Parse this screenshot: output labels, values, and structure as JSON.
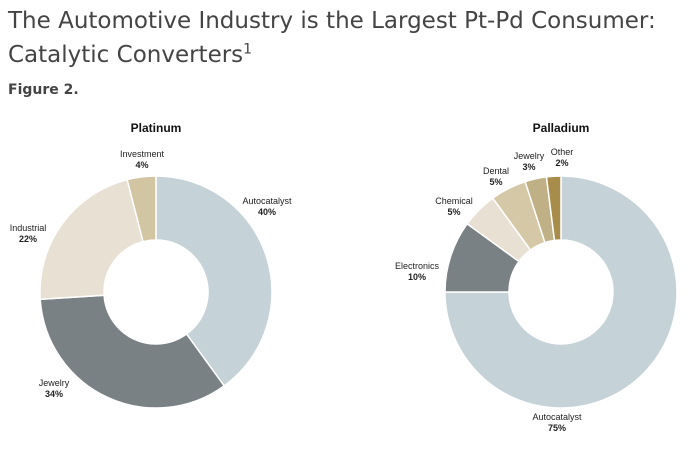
{
  "header": {
    "title": "The Automotive Industry is the Largest Pt-Pd Consumer: Catalytic Converters",
    "title_superscript": "1",
    "figure_label": "Figure 2."
  },
  "chart_data": [
    {
      "type": "pie",
      "title": "Platinum",
      "slices": [
        {
          "label": "Autocatalyst",
          "value": 40,
          "value_label": "40%",
          "color": "#c5d2d7"
        },
        {
          "label": "Jewelry",
          "value": 34,
          "value_label": "34%",
          "color": "#7a8184"
        },
        {
          "label": "Industrial",
          "value": 22,
          "value_label": "22%",
          "color": "#e8e0d2"
        },
        {
          "label": "Investment",
          "value": 4,
          "value_label": "4%",
          "color": "#d2c5a2"
        }
      ]
    },
    {
      "type": "pie",
      "title": "Palladium",
      "slices": [
        {
          "label": "Autocatalyst",
          "value": 75,
          "value_label": "75%",
          "color": "#c5d2d7"
        },
        {
          "label": "Electronics",
          "value": 10,
          "value_label": "10%",
          "color": "#7a8184"
        },
        {
          "label": "Chemical",
          "value": 5,
          "value_label": "5%",
          "color": "#e8e0d2"
        },
        {
          "label": "Dental",
          "value": 5,
          "value_label": "5%",
          "color": "#d4c8a6"
        },
        {
          "label": "Jewelry",
          "value": 3,
          "value_label": "3%",
          "color": "#bfb086"
        },
        {
          "label": "Other",
          "value": 2,
          "value_label": "2%",
          "color": "#a88c4a"
        }
      ]
    }
  ]
}
